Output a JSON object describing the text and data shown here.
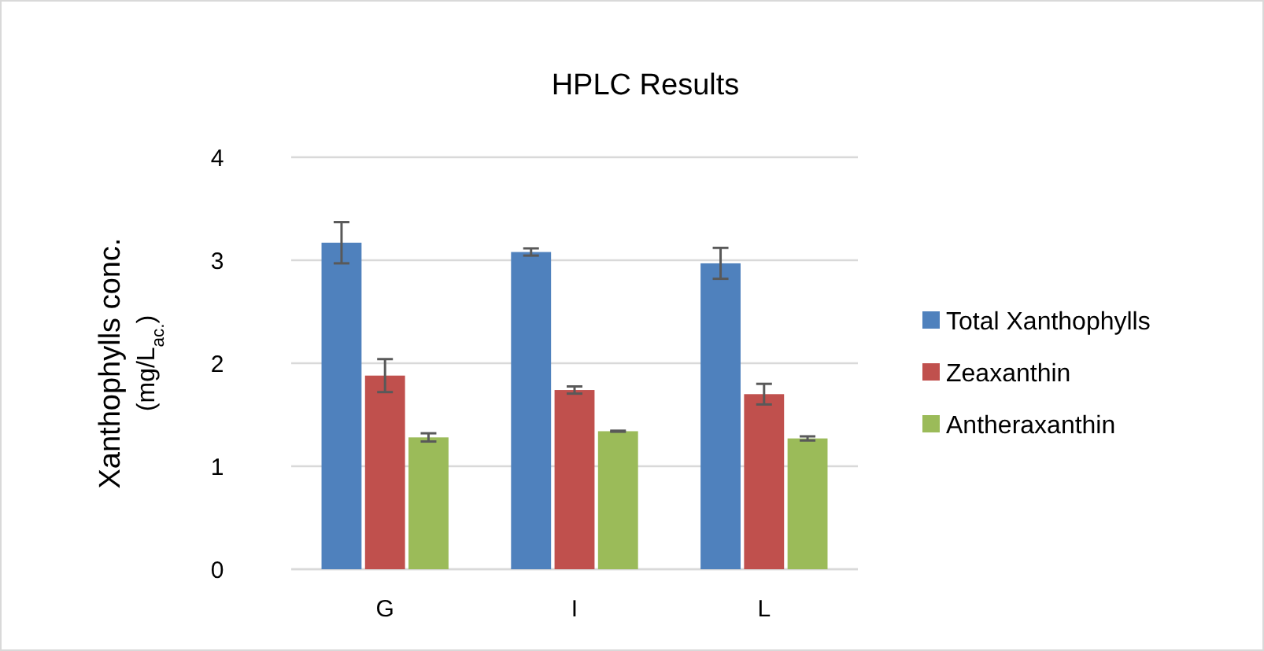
{
  "chart_data": {
    "type": "bar",
    "title": "HPLC Results",
    "ylabel": "Xanthophylls conc.\n(mg/L$_{ac.}$)",
    "categories": [
      "G",
      "I",
      "L"
    ],
    "series": [
      {
        "name": "Total Xanthophylls",
        "color": "#4f81bd",
        "values": [
          3.17,
          3.08,
          2.97
        ],
        "errors": [
          0.2,
          0.035,
          0.15
        ]
      },
      {
        "name": "Zeaxanthin",
        "color": "#c0504d",
        "values": [
          1.88,
          1.74,
          1.7
        ],
        "errors": [
          0.16,
          0.035,
          0.1
        ]
      },
      {
        "name": "Antheraxanthin",
        "color": "#9bbb59",
        "values": [
          1.28,
          1.34,
          1.27
        ],
        "errors": [
          0.04,
          0.005,
          0.02
        ]
      }
    ],
    "ylim": [
      0,
      4
    ],
    "yticks": [
      0,
      1,
      2,
      3,
      4
    ],
    "grid": "y",
    "legend": "right"
  }
}
